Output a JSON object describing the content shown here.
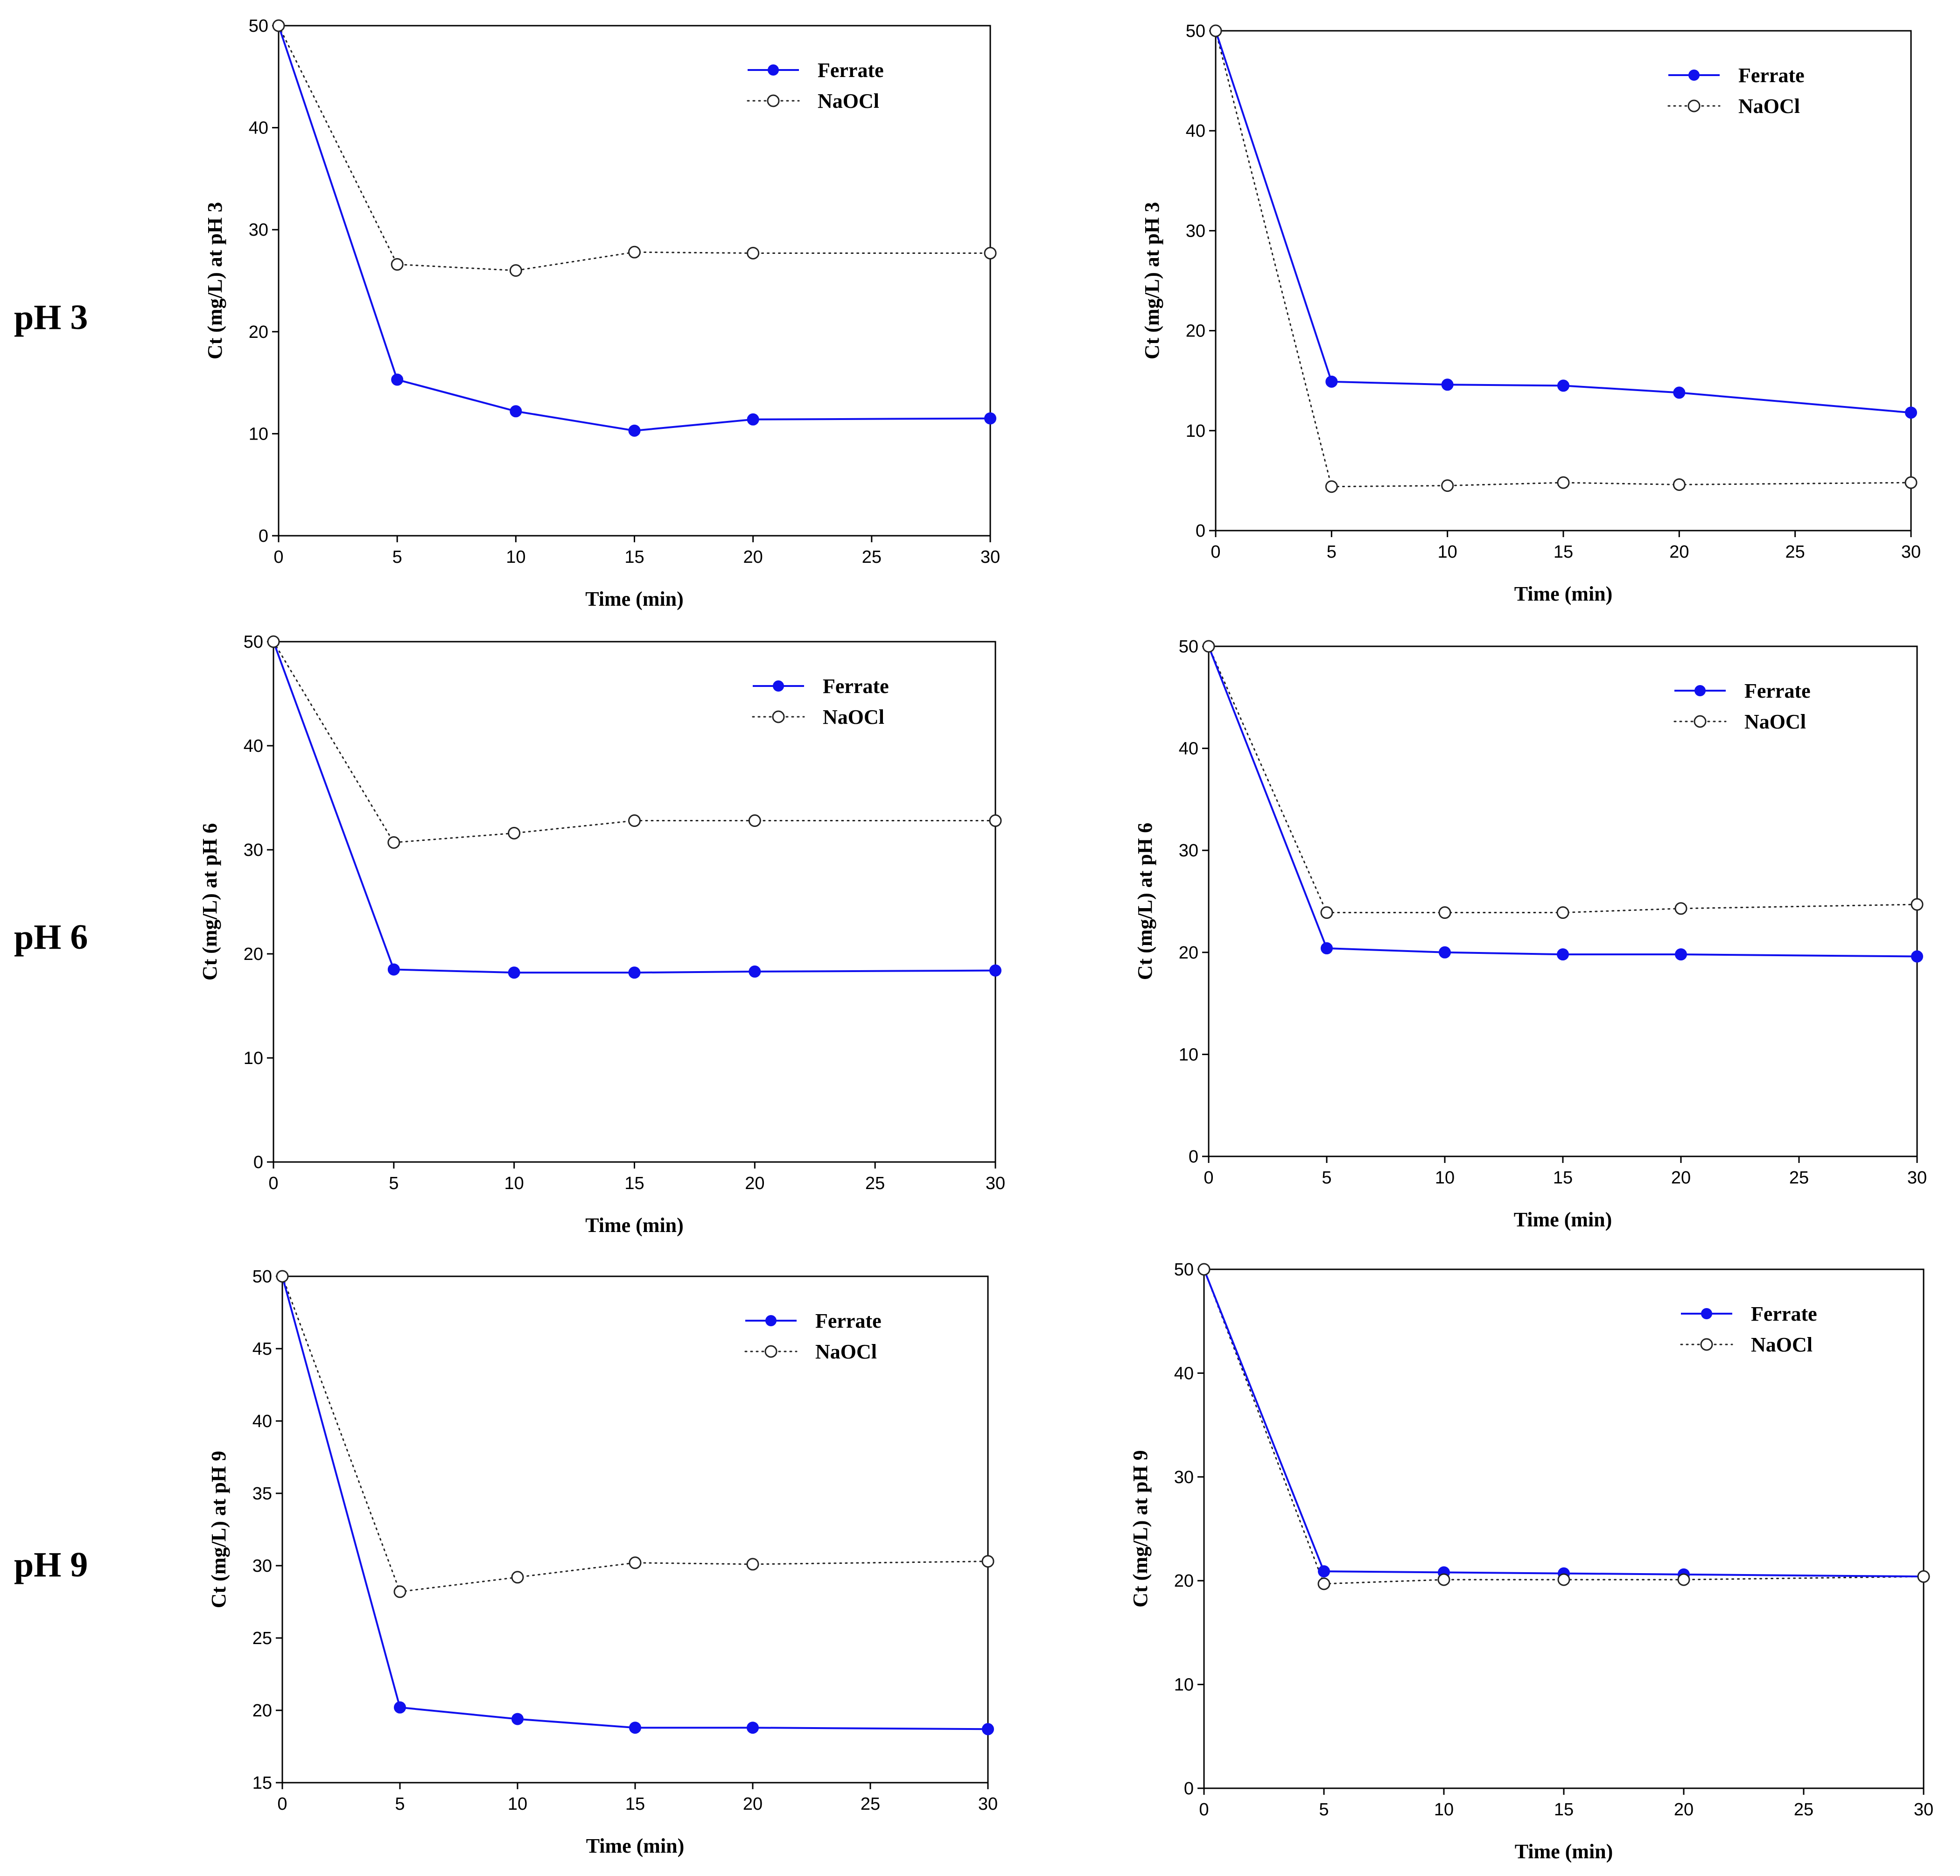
{
  "row_labels": [
    "pH 3",
    "pH 6",
    "pH 9"
  ],
  "colors": {
    "ferrate": "#1010ee",
    "naocl": "#222222",
    "axis": "#000000"
  },
  "chart_data": [
    {
      "type": "line",
      "row": 0,
      "col": 0,
      "xlabel": "Time (min)",
      "ylabel": "Ct (mg/L) at pH 3",
      "xlim": [
        0,
        30
      ],
      "ylim": [
        0,
        50
      ],
      "xticks": [
        0,
        5,
        10,
        15,
        20,
        25,
        30
      ],
      "yticks": [
        0,
        10,
        20,
        30,
        40,
        50
      ],
      "legend": "top-right",
      "series": [
        {
          "name": "Ferrate",
          "x": [
            0,
            5,
            10,
            15,
            20,
            30
          ],
          "y": [
            50,
            15.3,
            12.2,
            10.3,
            11.4,
            11.5
          ]
        },
        {
          "name": "NaOCl",
          "x": [
            0,
            5,
            10,
            15,
            20,
            30
          ],
          "y": [
            50,
            26.6,
            26.0,
            27.8,
            27.7,
            27.7
          ]
        }
      ]
    },
    {
      "type": "line",
      "row": 0,
      "col": 1,
      "xlabel": "Time (min)",
      "ylabel": "Ct (mg/L) at pH 3",
      "xlim": [
        0,
        30
      ],
      "ylim": [
        0,
        50
      ],
      "xticks": [
        0,
        5,
        10,
        15,
        20,
        25,
        30
      ],
      "yticks": [
        0,
        10,
        20,
        30,
        40,
        50
      ],
      "legend": "top-right",
      "series": [
        {
          "name": "Ferrate",
          "x": [
            0,
            5,
            10,
            15,
            20,
            30
          ],
          "y": [
            50,
            14.9,
            14.6,
            14.5,
            13.8,
            11.8
          ]
        },
        {
          "name": "NaOCl",
          "x": [
            0,
            5,
            10,
            15,
            20,
            30
          ],
          "y": [
            50,
            4.4,
            4.5,
            4.8,
            4.6,
            4.8
          ]
        }
      ]
    },
    {
      "type": "line",
      "row": 1,
      "col": 0,
      "xlabel": "Time (min)",
      "ylabel": "Ct (mg/L) at pH 6",
      "xlim": [
        0,
        30
      ],
      "ylim": [
        0,
        50
      ],
      "xticks": [
        0,
        5,
        10,
        15,
        20,
        25,
        30
      ],
      "yticks": [
        0,
        10,
        20,
        30,
        40,
        50
      ],
      "legend": "top-right",
      "series": [
        {
          "name": "Ferrate",
          "x": [
            0,
            5,
            10,
            15,
            20,
            30
          ],
          "y": [
            50,
            18.5,
            18.2,
            18.2,
            18.3,
            18.4
          ]
        },
        {
          "name": "NaOCl",
          "x": [
            0,
            5,
            10,
            15,
            20,
            30
          ],
          "y": [
            50,
            30.7,
            31.6,
            32.8,
            32.8,
            32.8
          ]
        }
      ]
    },
    {
      "type": "line",
      "row": 1,
      "col": 1,
      "xlabel": "Time (min)",
      "ylabel": "Ct (mg/L) at pH 6",
      "xlim": [
        0,
        30
      ],
      "ylim": [
        0,
        50
      ],
      "xticks": [
        0,
        5,
        10,
        15,
        20,
        25,
        30
      ],
      "yticks": [
        0,
        10,
        20,
        30,
        40,
        50
      ],
      "legend": "top-right",
      "series": [
        {
          "name": "Ferrate",
          "x": [
            0,
            5,
            10,
            15,
            20,
            30
          ],
          "y": [
            50,
            20.4,
            20.0,
            19.8,
            19.8,
            19.6
          ]
        },
        {
          "name": "NaOCl",
          "x": [
            0,
            5,
            10,
            15,
            20,
            30
          ],
          "y": [
            50,
            23.9,
            23.9,
            23.9,
            24.3,
            24.7
          ]
        }
      ]
    },
    {
      "type": "line",
      "row": 2,
      "col": 0,
      "xlabel": "Time (min)",
      "ylabel": "Ct (mg/L) at pH 9",
      "xlim": [
        0,
        30
      ],
      "ylim": [
        15,
        50
      ],
      "xticks": [
        0,
        5,
        10,
        15,
        20,
        25,
        30
      ],
      "yticks": [
        15,
        20,
        25,
        30,
        35,
        40,
        45,
        50
      ],
      "legend": "top-right",
      "series": [
        {
          "name": "Ferrate",
          "x": [
            0,
            5,
            10,
            15,
            20,
            30
          ],
          "y": [
            50,
            20.2,
            19.4,
            18.8,
            18.8,
            18.7
          ]
        },
        {
          "name": "NaOCl",
          "x": [
            0,
            5,
            10,
            15,
            20,
            30
          ],
          "y": [
            50,
            28.2,
            29.2,
            30.2,
            30.1,
            30.3
          ]
        }
      ]
    },
    {
      "type": "line",
      "row": 2,
      "col": 1,
      "xlabel": "Time (min)",
      "ylabel": "Ct (mg/L) at pH 9",
      "xlim": [
        0,
        30
      ],
      "ylim": [
        0,
        50
      ],
      "xticks": [
        0,
        5,
        10,
        15,
        20,
        25,
        30
      ],
      "yticks": [
        0,
        10,
        20,
        30,
        40,
        50
      ],
      "legend": "top-right",
      "series": [
        {
          "name": "Ferrate",
          "x": [
            0,
            5,
            10,
            15,
            20,
            30
          ],
          "y": [
            50,
            20.9,
            20.8,
            20.7,
            20.6,
            20.4
          ]
        },
        {
          "name": "NaOCl",
          "x": [
            0,
            5,
            10,
            15,
            20,
            30
          ],
          "y": [
            50,
            19.7,
            20.1,
            20.1,
            20.1,
            20.4
          ]
        }
      ]
    }
  ]
}
